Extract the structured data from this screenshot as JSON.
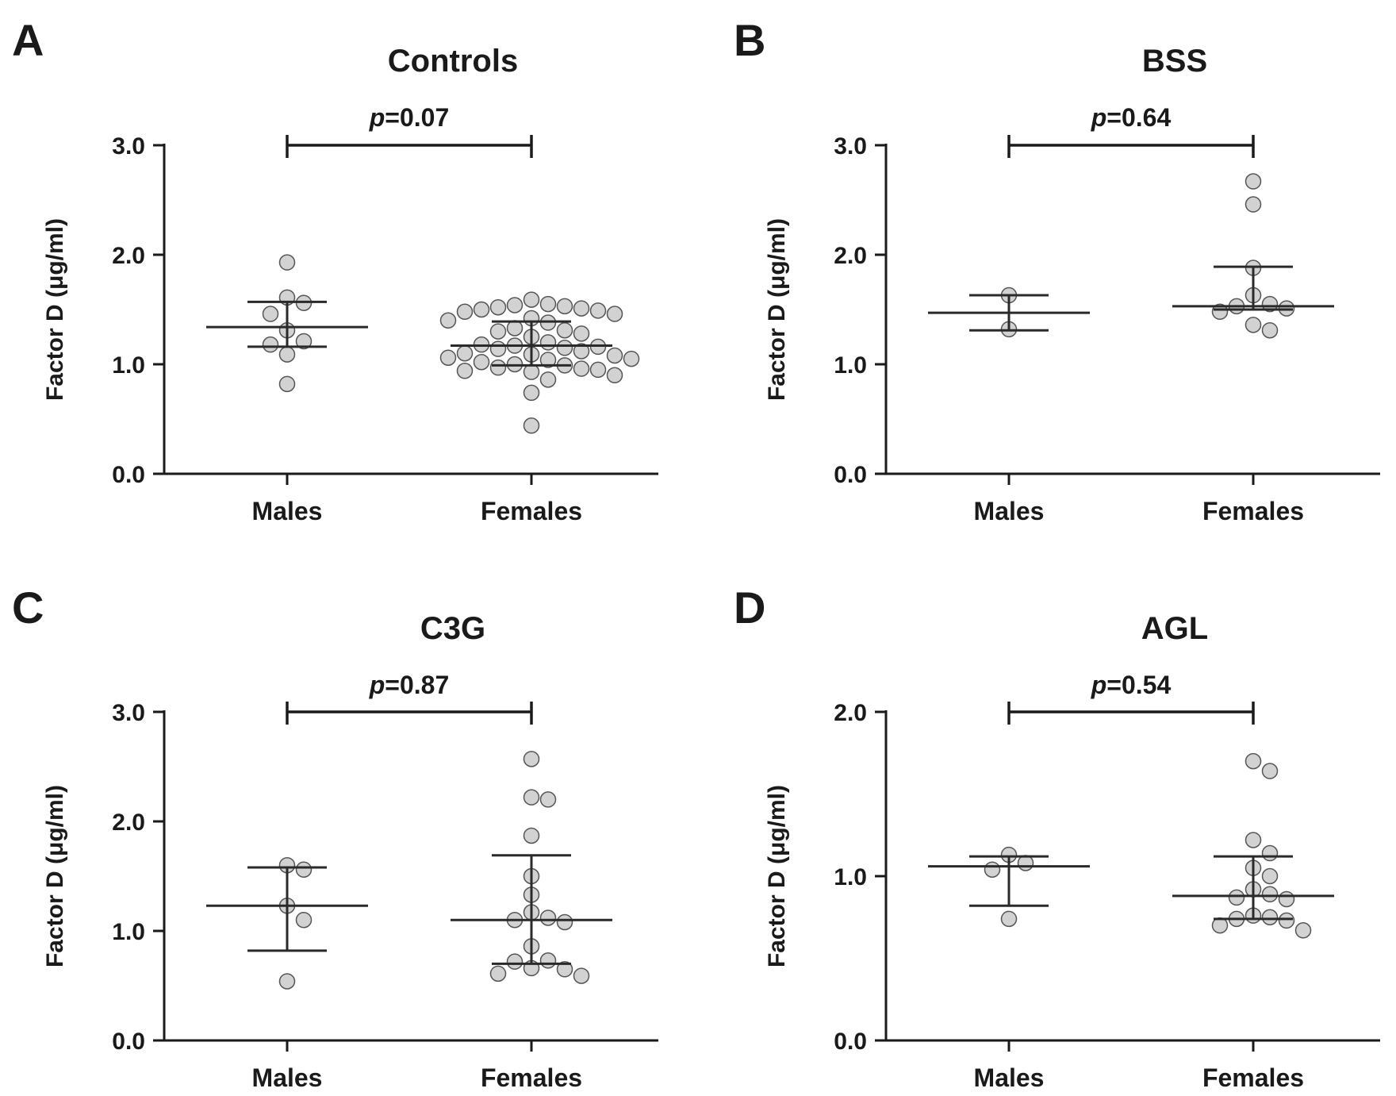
{
  "chart_data": [
    {
      "type": "scatter",
      "panel": "A",
      "title": "Controls",
      "ylabel": "Factor D (μg/ml)",
      "categories": [
        "Males",
        "Females"
      ],
      "ylim": [
        0,
        3
      ],
      "yticks": [
        "0.0",
        "1.0",
        "2.0",
        "3.0"
      ],
      "yticks_values": [
        0,
        1,
        2,
        3
      ],
      "p_prefix": "p",
      "p_value": "=0.07",
      "groups": [
        {
          "category": "Males",
          "mean": 1.34,
          "sd_low": 1.16,
          "sd_high": 1.57,
          "points": [
            1.93,
            1.61,
            1.56,
            1.46,
            1.31,
            1.21,
            1.18,
            1.09,
            0.82
          ]
        },
        {
          "category": "Females",
          "mean": 1.17,
          "sd_low": 0.99,
          "sd_high": 1.39,
          "points": [
            1.59,
            1.55,
            1.54,
            1.53,
            1.52,
            1.51,
            1.5,
            1.49,
            1.48,
            1.46,
            1.42,
            1.4,
            1.38,
            1.33,
            1.31,
            1.3,
            1.28,
            1.25,
            1.2,
            1.18,
            1.17,
            1.16,
            1.15,
            1.14,
            1.12,
            1.1,
            1.09,
            1.08,
            1.06,
            1.05,
            1.04,
            1.02,
            1.0,
            0.99,
            0.97,
            0.96,
            0.95,
            0.94,
            0.93,
            0.9,
            0.86,
            0.74,
            0.44
          ]
        }
      ]
    },
    {
      "type": "scatter",
      "panel": "B",
      "title": "BSS",
      "ylabel": "Factor D (μg/ml)",
      "categories": [
        "Males",
        "Females"
      ],
      "ylim": [
        0,
        3
      ],
      "yticks": [
        "0.0",
        "1.0",
        "2.0",
        "3.0"
      ],
      "yticks_values": [
        0,
        1,
        2,
        3
      ],
      "p_prefix": "p",
      "p_value": "=0.64",
      "groups": [
        {
          "category": "Males",
          "mean": 1.47,
          "sd_low": 1.31,
          "sd_high": 1.63,
          "points": [
            1.63,
            1.32
          ]
        },
        {
          "category": "Females",
          "mean": 1.53,
          "sd_low": 1.5,
          "sd_high": 1.89,
          "points": [
            2.67,
            2.46,
            1.88,
            1.63,
            1.55,
            1.53,
            1.51,
            1.48,
            1.36,
            1.31
          ]
        }
      ]
    },
    {
      "type": "scatter",
      "panel": "C",
      "title": "C3G",
      "ylabel": "Factor D (μg/ml)",
      "categories": [
        "Males",
        "Females"
      ],
      "ylim": [
        0,
        3
      ],
      "yticks": [
        "0.0",
        "1.0",
        "2.0",
        "3.0"
      ],
      "yticks_values": [
        0,
        1,
        2,
        3
      ],
      "p_prefix": "p",
      "p_value": "=0.87",
      "groups": [
        {
          "category": "Males",
          "mean": 1.23,
          "sd_low": 0.82,
          "sd_high": 1.58,
          "points": [
            1.6,
            1.56,
            1.23,
            1.1,
            0.54
          ]
        },
        {
          "category": "Females",
          "mean": 1.1,
          "sd_low": 0.7,
          "sd_high": 1.69,
          "points": [
            2.57,
            2.22,
            2.2,
            1.87,
            1.5,
            1.33,
            1.17,
            1.12,
            1.1,
            1.08,
            0.86,
            0.73,
            0.72,
            0.66,
            0.65,
            0.61,
            0.59
          ]
        }
      ]
    },
    {
      "type": "scatter",
      "panel": "D",
      "title": "AGL",
      "ylabel": "Factor D (μg/ml)",
      "categories": [
        "Males",
        "Females"
      ],
      "ylim": [
        0,
        2
      ],
      "yticks": [
        "0.0",
        "1.0",
        "2.0"
      ],
      "yticks_values": [
        0,
        1,
        2
      ],
      "p_prefix": "p",
      "p_value": "=0.54",
      "groups": [
        {
          "category": "Males",
          "mean": 1.06,
          "sd_low": 0.82,
          "sd_high": 1.12,
          "points": [
            1.13,
            1.08,
            1.04,
            0.74
          ]
        },
        {
          "category": "Females",
          "mean": 0.88,
          "sd_low": 0.74,
          "sd_high": 1.12,
          "points": [
            1.7,
            1.64,
            1.22,
            1.14,
            1.05,
            1.0,
            0.92,
            0.89,
            0.87,
            0.86,
            0.76,
            0.75,
            0.74,
            0.73,
            0.7,
            0.67
          ]
        }
      ]
    }
  ]
}
